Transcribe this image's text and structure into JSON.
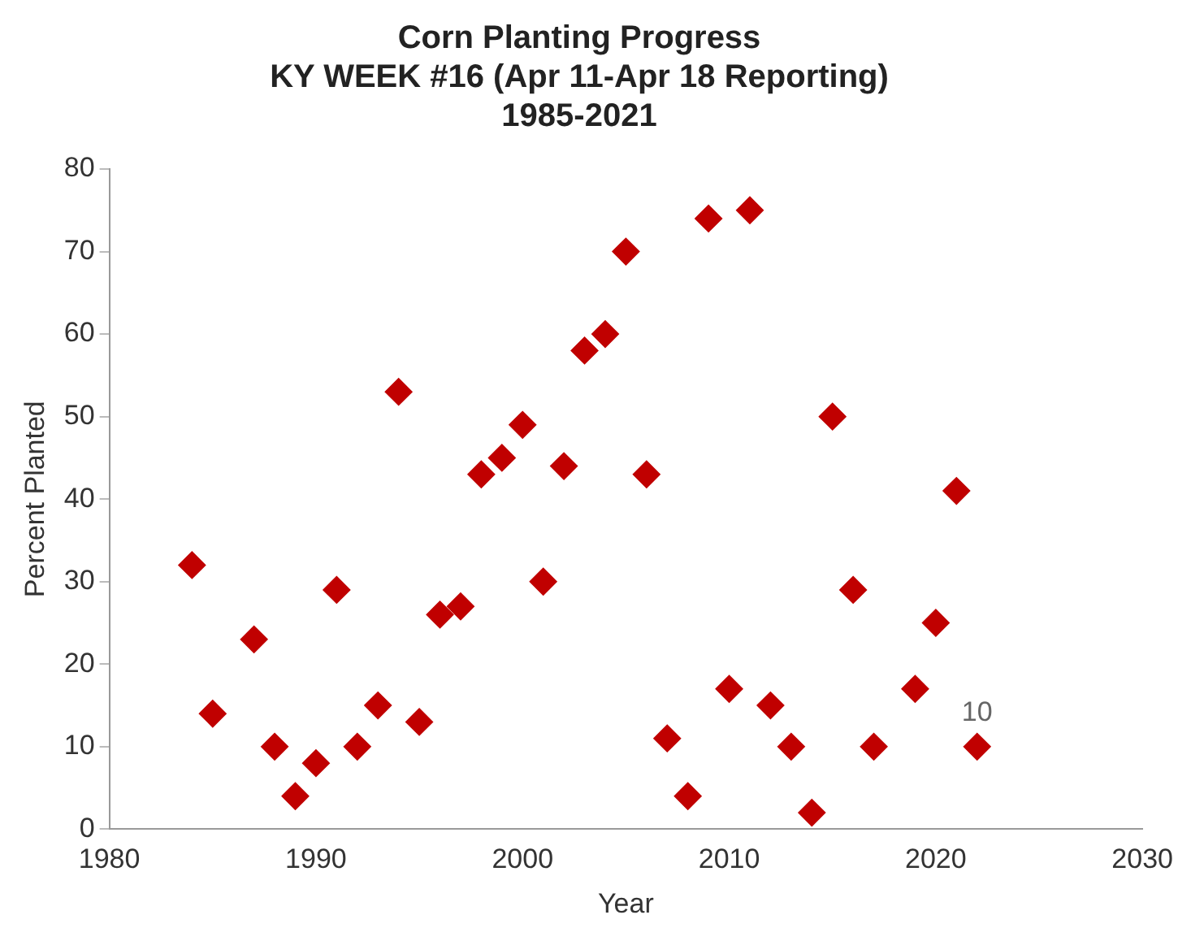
{
  "chart_data": {
    "type": "scatter",
    "title": "Corn Planting Progress\nKY WEEK #16 (Apr 11-Apr 18 Reporting)\n1985-2021",
    "xlabel": "Year",
    "ylabel": "Percent Planted",
    "x": [
      1984,
      1985,
      1987,
      1988,
      1989,
      1990,
      1991,
      1992,
      1993,
      1994,
      1995,
      1996,
      1997,
      1998,
      1999,
      2000,
      2001,
      2002,
      2003,
      2004,
      2005,
      2006,
      2007,
      2008,
      2009,
      2010,
      2011,
      2012,
      2013,
      2014,
      2015,
      2016,
      2017,
      2019,
      2020,
      2021,
      2022
    ],
    "values": [
      32,
      14,
      23,
      10,
      4,
      8,
      29,
      10,
      15,
      53,
      13,
      26,
      27,
      43,
      45,
      49,
      30,
      44,
      58,
      60,
      70,
      43,
      11,
      4,
      74,
      17,
      75,
      15,
      10,
      2,
      50,
      29,
      10,
      17,
      25,
      41,
      10
    ],
    "color": "#c00000",
    "marker": "diamond",
    "grid": false,
    "legend": false,
    "xlim": [
      1980,
      2030
    ],
    "xticks": [
      1980,
      1990,
      2000,
      2010,
      2020,
      2030
    ],
    "ylim": [
      0,
      80
    ],
    "yticks": [
      0,
      10,
      20,
      30,
      40,
      50,
      60,
      70,
      80
    ],
    "annotations": [
      {
        "text": "10",
        "x": 2022,
        "y": 10
      }
    ]
  }
}
